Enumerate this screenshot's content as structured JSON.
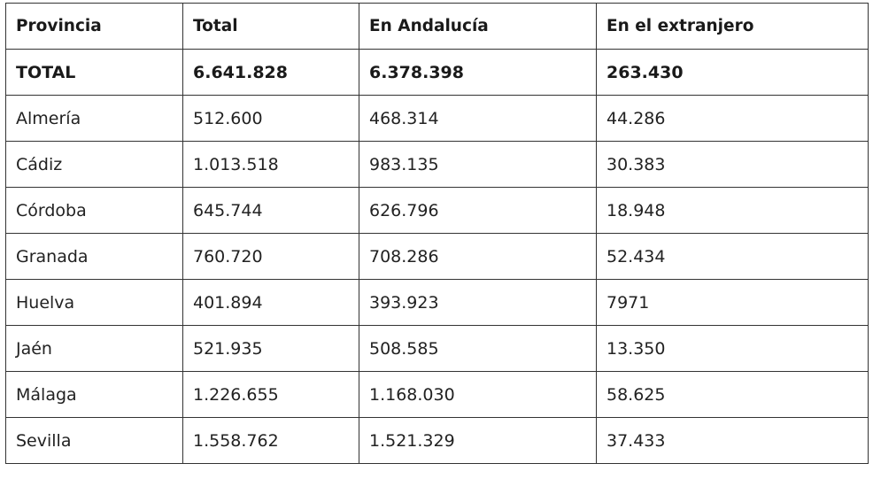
{
  "table": {
    "headers": [
      "Provincia",
      "Total",
      "En Andalucía",
      "En el extranjero"
    ],
    "total_row": [
      "TOTAL",
      "6.641.828",
      "6.378.398",
      "263.430"
    ],
    "rows": [
      [
        "Almería",
        "512.600",
        "468.314",
        "44.286"
      ],
      [
        "Cádiz",
        "1.013.518",
        "983.135",
        "30.383"
      ],
      [
        "Córdoba",
        "645.744",
        "626.796",
        "18.948"
      ],
      [
        "Granada",
        "760.720",
        "708.286",
        "52.434"
      ],
      [
        "Huelva",
        "401.894",
        "393.923",
        "7971"
      ],
      [
        "Jaén",
        "521.935",
        "508.585",
        "13.350"
      ],
      [
        "Málaga",
        "1.226.655",
        "1.168.030",
        "58.625"
      ],
      [
        "Sevilla",
        "1.558.762",
        "1.521.329",
        "37.433"
      ]
    ]
  }
}
